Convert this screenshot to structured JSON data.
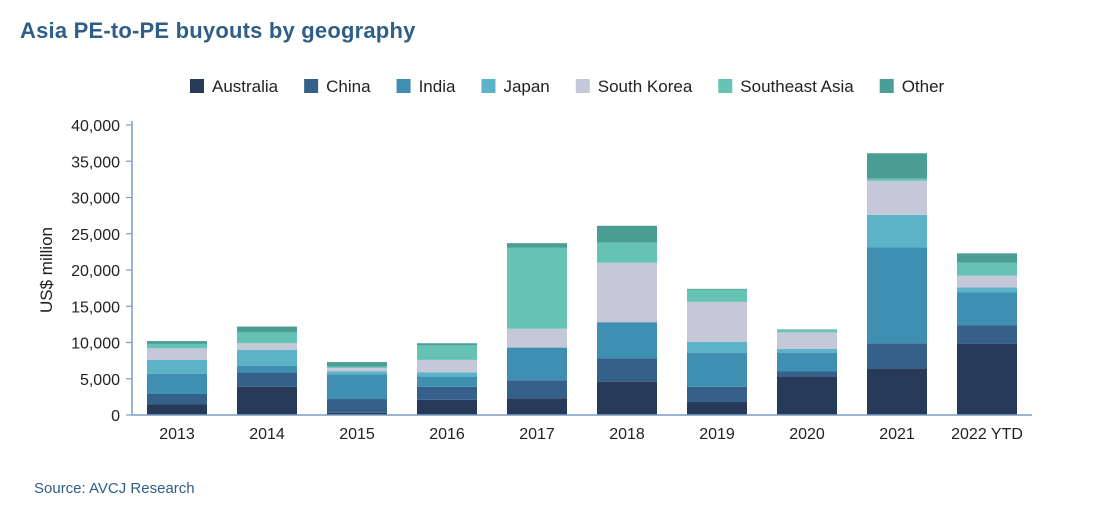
{
  "title": "Asia PE-to-PE buyouts by geography",
  "source": "Source: AVCJ Research",
  "colors": {
    "Australia": "#283a59",
    "China": "#35608a",
    "India": "#3f8fb3",
    "Japan": "#5cb3c8",
    "South Korea": "#c5c8d8",
    "Southeast Asia": "#66c2b2",
    "Other": "#4b9e94"
  },
  "chart_data": {
    "type": "bar",
    "stacked": true,
    "categories": [
      "2013",
      "2014",
      "2015",
      "2016",
      "2017",
      "2018",
      "2019",
      "2020",
      "2021",
      "2022 YTD"
    ],
    "series": [
      {
        "name": "Australia",
        "values": [
          1500,
          3900,
          300,
          2100,
          2300,
          4600,
          1800,
          5300,
          6400,
          9800
        ]
      },
      {
        "name": "China",
        "values": [
          1400,
          2000,
          1900,
          1800,
          2500,
          3200,
          2100,
          700,
          3500,
          2600
        ]
      },
      {
        "name": "India",
        "values": [
          2800,
          900,
          3400,
          1400,
          4500,
          5000,
          4700,
          2600,
          13200,
          4500
        ]
      },
      {
        "name": "Japan",
        "values": [
          1900,
          2200,
          400,
          600,
          0,
          0,
          1500,
          500,
          4500,
          700
        ]
      },
      {
        "name": "South Korea",
        "values": [
          1600,
          900,
          500,
          1700,
          2600,
          8200,
          5500,
          2300,
          4700,
          1600
        ]
      },
      {
        "name": "Southeast Asia",
        "values": [
          600,
          1500,
          200,
          2000,
          11200,
          2800,
          1700,
          300,
          300,
          1800
        ]
      },
      {
        "name": "Other",
        "values": [
          400,
          800,
          600,
          300,
          600,
          2300,
          100,
          100,
          3500,
          1300
        ]
      }
    ],
    "ylabel": "US$ million",
    "ylim": [
      0,
      40000
    ],
    "yticks": [
      0,
      5000,
      10000,
      15000,
      20000,
      25000,
      30000,
      35000,
      40000
    ],
    "ytick_labels": [
      "0",
      "5,000",
      "10,000",
      "15,000",
      "20,000",
      "25,000",
      "30,000",
      "35,000",
      "40,000"
    ],
    "legend": [
      "Australia",
      "China",
      "India",
      "Japan",
      "South Korea",
      "Southeast Asia",
      "Other"
    ],
    "legend_position": "top",
    "grid": false
  }
}
